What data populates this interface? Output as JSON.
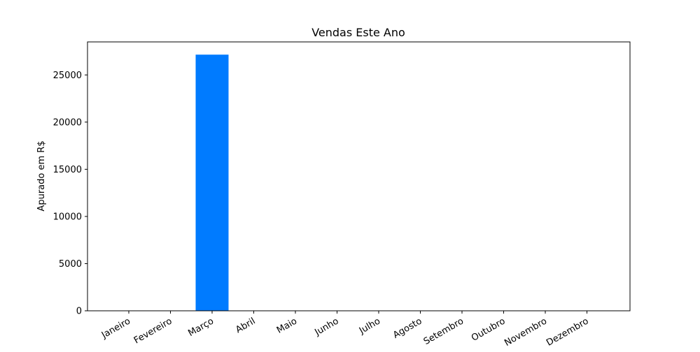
{
  "chart_data": {
    "type": "bar",
    "title": "Vendas Este Ano",
    "xlabel": "",
    "ylabel": "Apurado em R$",
    "categories": [
      "Janeiro",
      "Fevereiro",
      "Março",
      "Abril",
      "Maio",
      "Junho",
      "Julho",
      "Agosto",
      "Setembro",
      "Outubro",
      "Novembro",
      "Dezembro"
    ],
    "values": [
      0,
      0,
      27150,
      0,
      0,
      0,
      0,
      0,
      0,
      0,
      0,
      0
    ],
    "ylim": [
      0,
      28500
    ],
    "yticks": [
      0,
      5000,
      10000,
      15000,
      20000,
      25000
    ],
    "ytick_labels": [
      "0",
      "5000",
      "10000",
      "15000",
      "20000",
      "25000"
    ],
    "bar_color": "#007bff",
    "grid": false,
    "legend": "none"
  }
}
